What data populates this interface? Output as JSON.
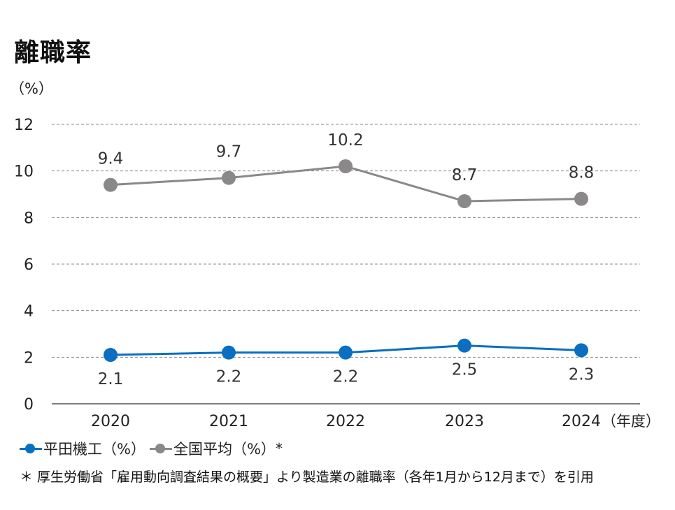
{
  "chart_data": {
    "type": "line",
    "title": "離職率",
    "ylabel": "（%）",
    "xlabel": "（年度）",
    "categories": [
      "2020",
      "2021",
      "2022",
      "2023",
      "2024"
    ],
    "ylim": [
      0,
      12
    ],
    "yticks": [
      0,
      2,
      4,
      6,
      8,
      10,
      12
    ],
    "grid": "horizontal dashed",
    "series": [
      {
        "name": "平田機工（%）",
        "color": "#0a6fc0",
        "values": [
          2.1,
          2.2,
          2.2,
          2.5,
          2.3
        ],
        "label_position": "below"
      },
      {
        "name": "全国平均（%）",
        "color": "#8a8888",
        "values": [
          9.4,
          9.7,
          10.2,
          8.7,
          8.8
        ],
        "label_position": "above"
      }
    ],
    "legend_position": "bottom-left",
    "legend_note": "*"
  },
  "footnote": "＊ 厚生労働省「雇用動向調査結果の概要」より製造業の離職率（各年1月から12月まで）を引用"
}
